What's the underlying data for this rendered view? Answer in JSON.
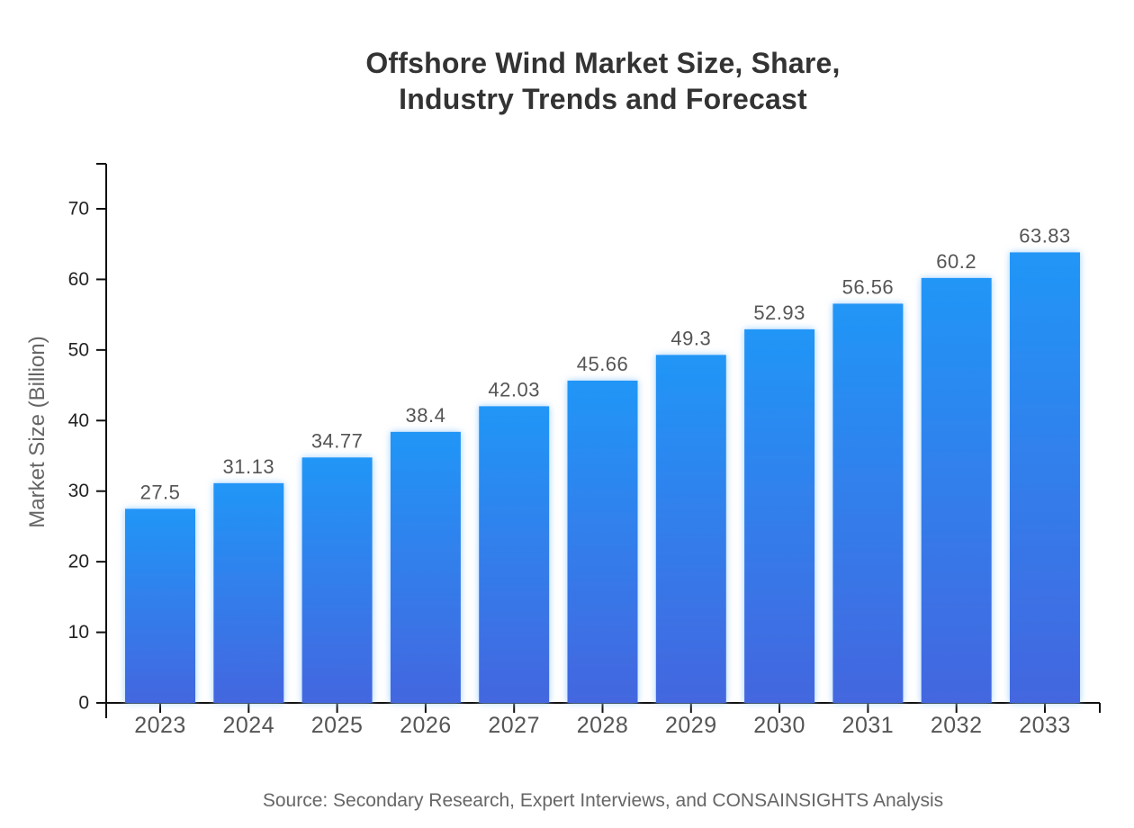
{
  "title": {
    "line1": "Offshore Wind Market Size, Share,",
    "line2": "Industry Trends and Forecast"
  },
  "source": "Source: Secondary Research, Expert Interviews, and CONSAINSIGHTS Analysis",
  "chart_data": {
    "type": "bar",
    "title": "Offshore Wind Market Size, Share, Industry Trends and Forecast",
    "categories": [
      "2023",
      "2024",
      "2025",
      "2026",
      "2027",
      "2028",
      "2029",
      "2030",
      "2031",
      "2032",
      "2033"
    ],
    "values": [
      27.5,
      31.13,
      34.77,
      38.4,
      42.03,
      45.66,
      49.3,
      52.93,
      56.56,
      60.2,
      63.83
    ],
    "value_labels": [
      "27.5",
      "31.13",
      "34.77",
      "38.4",
      "42.03",
      "45.66",
      "49.3",
      "52.93",
      "56.56",
      "60.2",
      "63.83"
    ],
    "xlabel": "",
    "ylabel": "Market Size (Billion)",
    "ylim": [
      0,
      76.5
    ],
    "yticks": [
      0,
      10,
      20,
      30,
      40,
      50,
      60,
      70
    ],
    "grid": false,
    "legend_position": "none",
    "colors": {
      "bar_gradient_top": "#2196F7",
      "bar_gradient_bottom": "#4466DF",
      "bar_glow": "#8EC9FF",
      "axis": "#111111",
      "ytick_label": "#222222",
      "xtick_label": "#555555",
      "value_label": "#555555",
      "title": "#333333",
      "caption": "#666666"
    }
  }
}
